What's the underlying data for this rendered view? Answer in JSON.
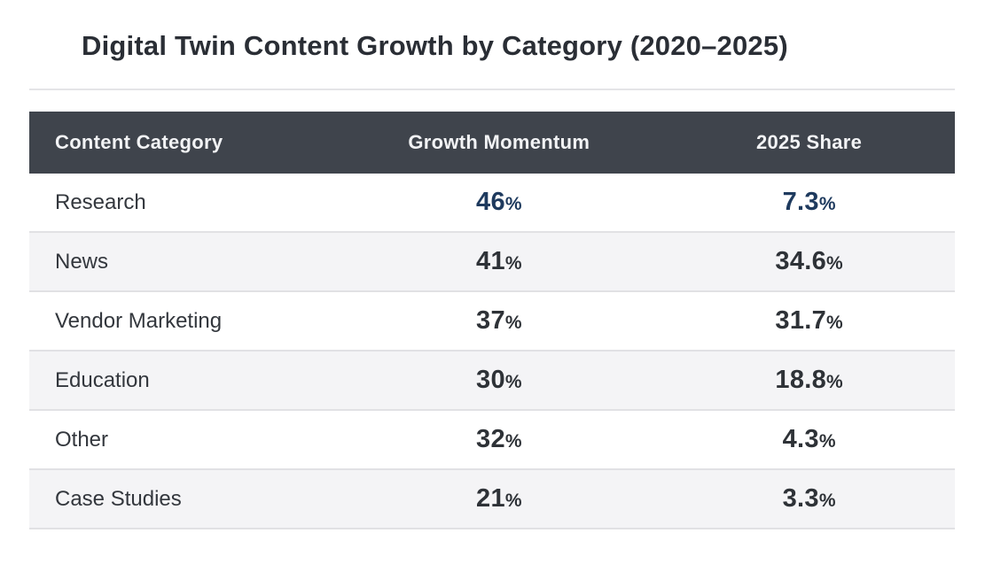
{
  "title": {
    "emphasis": "Digital Twin",
    "rest": " Content Growth by Category (2020–2025)"
  },
  "table": {
    "columns": [
      "Content Category",
      "Growth Momentum",
      "2025 Share"
    ],
    "percent_suffix": "%",
    "rows": [
      {
        "category": "Research",
        "growth": "46",
        "share": "7.3",
        "highlighted": true
      },
      {
        "category": "News",
        "growth": "41",
        "share": "34.6",
        "highlighted": false
      },
      {
        "category": "Vendor Marketing",
        "growth": "37",
        "share": "31.7",
        "highlighted": false
      },
      {
        "category": "Education",
        "growth": "30",
        "share": "18.8",
        "highlighted": false
      },
      {
        "category": "Other",
        "growth": "32",
        "share": "4.3",
        "highlighted": false
      },
      {
        "category": "Case Studies",
        "growth": "21",
        "share": "3.3",
        "highlighted": false
      }
    ]
  },
  "colors": {
    "header_background": "#3f444c",
    "header_text": "#f2f3f5",
    "highlight_navy": "#1e3a5e",
    "value_charcoal": "#2e3237",
    "row_stripe": "#f4f4f6",
    "row_border": "#e1e1e4",
    "title_text": "#2a2e35",
    "page_background": "#ffffff"
  },
  "chart_data": {
    "type": "table",
    "title": "Digital Twin Content Growth by Category (2020–2025)",
    "categories": [
      "Research",
      "News",
      "Vendor Marketing",
      "Education",
      "Other",
      "Case Studies"
    ],
    "series": [
      {
        "name": "Growth Momentum",
        "unit": "%",
        "values": [
          46,
          41,
          37,
          30,
          32,
          21
        ]
      },
      {
        "name": "2025 Share",
        "unit": "%",
        "values": [
          7.3,
          34.6,
          31.7,
          18.8,
          4.3,
          3.3
        ]
      }
    ],
    "layout_hints": {
      "header_style": "dark slate bar, white text",
      "striped_rows": true,
      "highlighted_row": "Research",
      "value_alignment": "center",
      "category_alignment": "left"
    }
  }
}
